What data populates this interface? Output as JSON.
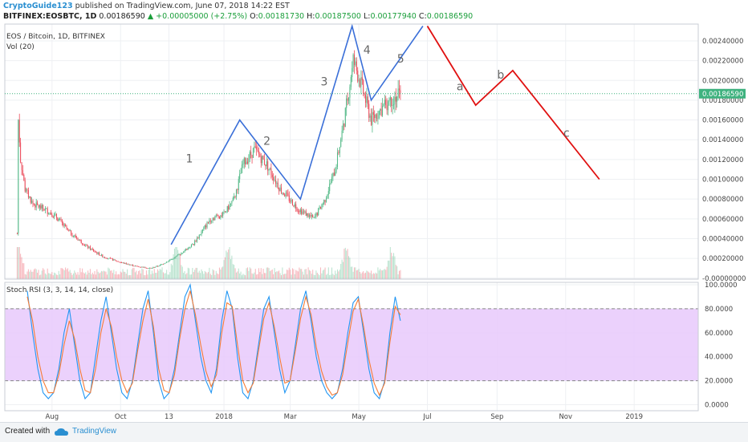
{
  "header": {
    "author": "CryptoGuide123",
    "published": "published on TradingView.com, June 07, 2018 14:22 EST",
    "symbol": "BITFINEX:EOSBTC, 1D",
    "last": "0.00186590",
    "change": "▲ +0.00005000 (+2.75%)",
    "o_label": "O:",
    "o": "0.00181730",
    "h_label": "H:",
    "h": "0.00187500",
    "l_label": "L:",
    "l": "0.00177940",
    "c_label": "C:",
    "c": "0.00186590"
  },
  "legend": {
    "title": "EOS / Bitcoin, 1D, BITFINEX",
    "vol": "Vol (20)",
    "rsi": "Stoch RSI (3, 3, 14, 14, close)"
  },
  "footer": {
    "created": "Created with",
    "brand": "TradingView"
  },
  "colors": {
    "up": "#53b987",
    "down": "#eb4d5c",
    "wave": "#3a6fd8",
    "correction": "#e01010",
    "last_price_tag": "#3fb27f",
    "rsi_band": "#e8c9fb",
    "k_line": "#2196f3",
    "d_line": "#f57c36"
  },
  "chart_data": [
    {
      "type": "candlestick",
      "title": "EOS / Bitcoin, 1D, BITFINEX",
      "ylim": [
        -1e-05,
        0.00257
      ],
      "yticks": [
        "0.00240000",
        "0.00220000",
        "0.00200000",
        "0.00180000",
        "0.00160000",
        "0.00140000",
        "0.00120000",
        "0.00100000",
        "0.00080000",
        "0.00060000",
        "0.00040000",
        "0.00020000",
        "-0.00000000"
      ],
      "ytick_values": [
        0.0024,
        0.0022,
        0.002,
        0.0018,
        0.0016,
        0.0014,
        0.0012,
        0.001,
        0.0008,
        0.0006,
        0.0004,
        0.0002,
        0
      ],
      "xticks": [
        "Aug",
        "Oct",
        "13",
        "2018",
        "Mar",
        "May",
        "Jul",
        "Sep",
        "Nov",
        "2019"
      ],
      "xtick_dates": [
        "2017-08-01",
        "2017-10-01",
        "2017-11-13",
        "2018-01-01",
        "2018-03-01",
        "2018-05-01",
        "2018-07-01",
        "2018-09-01",
        "2018-11-01",
        "2019-01-01"
      ],
      "last_price": "0.00186590",
      "price_path": [
        [
          "2017-07-01",
          0.00045
        ],
        [
          "2017-07-02",
          0.0016
        ],
        [
          "2017-07-04",
          0.0012
        ],
        [
          "2017-07-08",
          0.0009
        ],
        [
          "2017-07-15",
          0.00075
        ],
        [
          "2017-07-25",
          0.0007
        ],
        [
          "2017-08-05",
          0.00062
        ],
        [
          "2017-08-15",
          0.00048
        ],
        [
          "2017-09-01",
          0.00032
        ],
        [
          "2017-09-15",
          0.00022
        ],
        [
          "2017-10-01",
          0.00016
        ],
        [
          "2017-10-15",
          0.00012
        ],
        [
          "2017-10-28",
          0.0001
        ],
        [
          "2017-11-05",
          0.00013
        ],
        [
          "2017-11-20",
          0.00022
        ],
        [
          "2017-12-05",
          0.00035
        ],
        [
          "2017-12-20",
          0.0006
        ],
        [
          "2018-01-01",
          0.00065
        ],
        [
          "2018-01-10",
          0.0008
        ],
        [
          "2018-01-18",
          0.00115
        ],
        [
          "2018-01-28",
          0.0013
        ],
        [
          "2018-02-08",
          0.00115
        ],
        [
          "2018-02-20",
          0.0009
        ],
        [
          "2018-03-08",
          0.0007
        ],
        [
          "2018-03-22",
          0.0006
        ],
        [
          "2018-04-01",
          0.0008
        ],
        [
          "2018-04-10",
          0.0011
        ],
        [
          "2018-04-18",
          0.0016
        ],
        [
          "2018-04-26",
          0.0022
        ],
        [
          "2018-05-02",
          0.002
        ],
        [
          "2018-05-12",
          0.0016
        ],
        [
          "2018-05-20",
          0.0017
        ],
        [
          "2018-05-28",
          0.0018
        ],
        [
          "2018-06-07",
          0.00187
        ]
      ],
      "volume_peak_dates": [
        "2017-07-02",
        "2017-11-20",
        "2018-01-05",
        "2018-04-20",
        "2018-05-30"
      ],
      "wave_labels": [
        "1",
        "2",
        "3",
        "4",
        "5",
        "a",
        "b",
        "c"
      ],
      "wave_path": [
        [
          "2017-11-15",
          0.00034
        ],
        [
          "2018-01-15",
          0.0016
        ],
        [
          "2018-03-10",
          0.0008
        ],
        [
          "2018-04-25",
          0.00255
        ],
        [
          "2018-05-12",
          0.0018
        ],
        [
          "2018-06-27",
          0.00255
        ]
      ],
      "correction_path": [
        [
          "2018-07-01",
          0.00255
        ],
        [
          "2018-08-13",
          0.00175
        ],
        [
          "2018-09-15",
          0.0021
        ],
        [
          "2018-12-01",
          0.001
        ]
      ]
    },
    {
      "type": "line",
      "title": "Stoch RSI (3, 3, 14, 14, close)",
      "ylim": [
        -5,
        102
      ],
      "yticks": [
        "100.0000",
        "80.0000",
        "60.0000",
        "40.0000",
        "20.0000",
        "0.0000"
      ],
      "ytick_values": [
        100,
        80,
        60,
        40,
        20,
        0
      ],
      "band": [
        20,
        80
      ],
      "series": [
        {
          "name": "K",
          "values": [
            95,
            60,
            30,
            10,
            5,
            10,
            30,
            60,
            80,
            50,
            20,
            5,
            10,
            40,
            70,
            90,
            60,
            30,
            10,
            5,
            20,
            50,
            80,
            95,
            60,
            20,
            5,
            10,
            30,
            60,
            90,
            100,
            70,
            40,
            20,
            10,
            30,
            70,
            95,
            80,
            40,
            10,
            5,
            20,
            50,
            80,
            90,
            60,
            30,
            10,
            20,
            50,
            80,
            95,
            70,
            40,
            20,
            10,
            5,
            10,
            30,
            60,
            85,
            90,
            60,
            30,
            10,
            5,
            20,
            60,
            90,
            70
          ]
        },
        {
          "name": "D",
          "values": [
            90,
            70,
            40,
            20,
            10,
            10,
            25,
            50,
            70,
            55,
            30,
            12,
            10,
            30,
            60,
            80,
            65,
            40,
            20,
            10,
            18,
            45,
            70,
            88,
            65,
            30,
            12,
            10,
            25,
            55,
            80,
            95,
            75,
            50,
            28,
            15,
            25,
            60,
            85,
            82,
            50,
            20,
            10,
            18,
            45,
            72,
            85,
            65,
            40,
            18,
            20,
            45,
            72,
            90,
            75,
            48,
            28,
            15,
            8,
            10,
            25,
            52,
            78,
            88,
            65,
            38,
            18,
            8,
            18,
            52,
            82,
            75
          ]
        }
      ]
    }
  ]
}
